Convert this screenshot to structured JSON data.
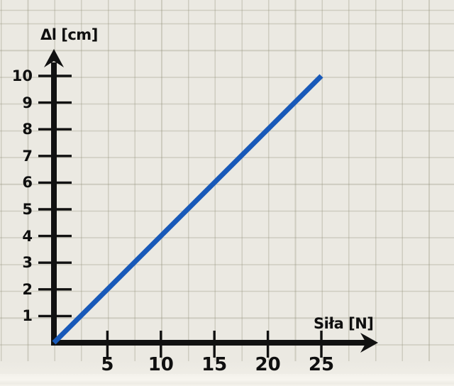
{
  "colors": {
    "paper": "#ebe9e2",
    "grid": "#c9c7b9",
    "axis": "#111111",
    "text": "#0f0f0f",
    "line": "#1859b9",
    "edge_strip": "#f4f2ec"
  },
  "chart_data": {
    "type": "line",
    "title": "",
    "xlabel": "Siła [N]",
    "ylabel": "Δl [cm]",
    "x_ticks": [
      5,
      10,
      15,
      20,
      25
    ],
    "y_ticks": [
      1,
      2,
      3,
      4,
      5,
      6,
      7,
      8,
      9,
      10
    ],
    "xlim": [
      0,
      28
    ],
    "ylim": [
      0,
      11
    ],
    "grid": true,
    "grid_cell_units": {
      "x": 2.5,
      "y": 1
    },
    "axes_end_arrows": true,
    "legend": "none",
    "series": [
      {
        "color": "#1859b9",
        "points": [
          [
            0,
            0
          ],
          [
            25,
            10
          ]
        ]
      }
    ]
  }
}
